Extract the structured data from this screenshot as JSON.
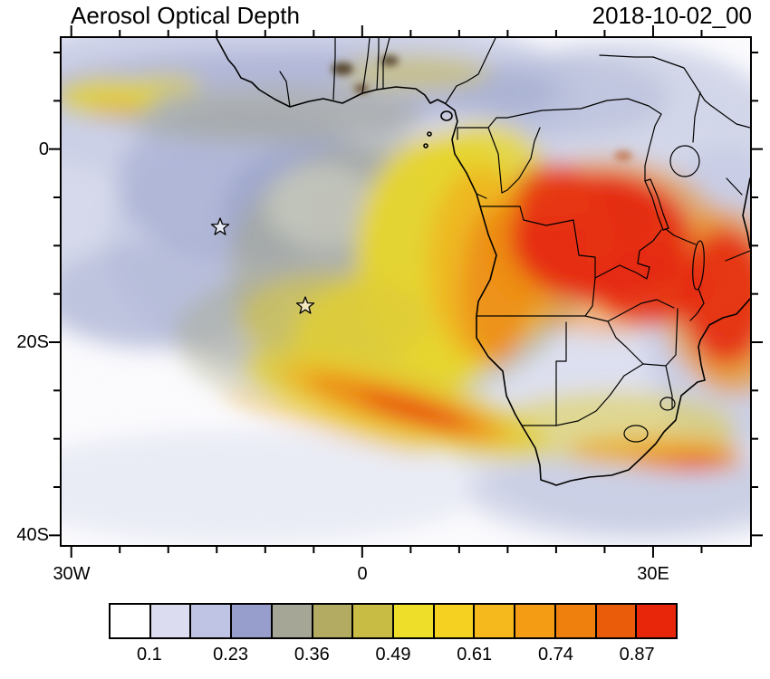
{
  "title": "Aerosol Optical Depth",
  "timestamp": "2018-10-02_00",
  "axes": {
    "y_ticks": [
      {
        "label": "0"
      },
      {
        "label": "20S"
      },
      {
        "label": "40S"
      }
    ],
    "x_ticks": [
      {
        "label": "30W"
      },
      {
        "label": "0"
      },
      {
        "label": "30E"
      }
    ]
  },
  "colorbar": {
    "colors": [
      "#ffffff",
      "#dcdcf0",
      "#bfc3e4",
      "#979ecb",
      "#a5a695",
      "#b3ab62",
      "#c9bc45",
      "#eede2a",
      "#f5d222",
      "#f5b81d",
      "#f39c14",
      "#f0800d",
      "#ea5c09",
      "#e82609"
    ],
    "tick_labels": [
      "0.1",
      "0.23",
      "0.36",
      "0.49",
      "0.61",
      "0.74",
      "0.87"
    ]
  },
  "chart_data": {
    "type": "heatmap",
    "title": "Aerosol Optical Depth",
    "timestamp": "2018-10-02_00",
    "projection": "cylindrical lat/lon over Africa and South Atlantic",
    "lon_range_deg": [
      -31,
      40
    ],
    "lat_range_deg": [
      -41,
      11.5
    ],
    "x_tick_labels": [
      "30W",
      "0",
      "30E"
    ],
    "y_tick_labels": [
      "0",
      "20S",
      "40S"
    ],
    "minor_tick_interval_deg": 5,
    "colorbar_tick_values": [
      0.1,
      0.23,
      0.36,
      0.49,
      0.61,
      0.74,
      0.87
    ],
    "colorbar_colors": [
      "#ffffff",
      "#dcdcf0",
      "#bfc3e4",
      "#979ecb",
      "#a5a695",
      "#b3ab62",
      "#c9bc45",
      "#eede2a",
      "#f5d222",
      "#f5b81d",
      "#f39c14",
      "#f0800d",
      "#ea5c09",
      "#e82609"
    ],
    "legend_position": "bottom",
    "grid": false,
    "markers": [
      {
        "type": "star",
        "lon": -14.5,
        "lat": -8.3
      },
      {
        "type": "star",
        "lon": -5.9,
        "lat": -16.6
      }
    ],
    "overlays": [
      "African coastlines",
      "country borders",
      "rift lakes"
    ],
    "regions": [
      {
        "region": "Central Africa: Congo Basin / Angola / Zambia (15E-32E, 2S-15S)",
        "aod": "0.75-1.0+ (red maximum)"
      },
      {
        "region": "Eastern lobe near Lake Malawi / Mozambique (28E-38E, 8S-17S)",
        "aod": "0.7-1.0 (red)"
      },
      {
        "region": "Marine smoke plume off Angola coast (0-12E, 4S-20S)",
        "aod": "0.45-0.75 (yellow-orange)"
      },
      {
        "region": "Diagonal marine streak SW of Namibia (5W-12E, 20S-27S)",
        "aod": "0.55-0.9 (orange-red filament)"
      },
      {
        "region": "Tropical North Atlantic / Gulf of Guinea band (31W-5E, 0-11N)",
        "aod": "0.15-0.35 with small dark fire hotspots near coast"
      },
      {
        "region": "South coast of South Africa / Agulhas (18E-35E, 30S-36S)",
        "aod": "0.4-0.7 streaks"
      },
      {
        "region": "Open southwest ocean (31W-5E, 25S-41S)",
        "aod": "< 0.15 (white/pale)"
      }
    ]
  }
}
